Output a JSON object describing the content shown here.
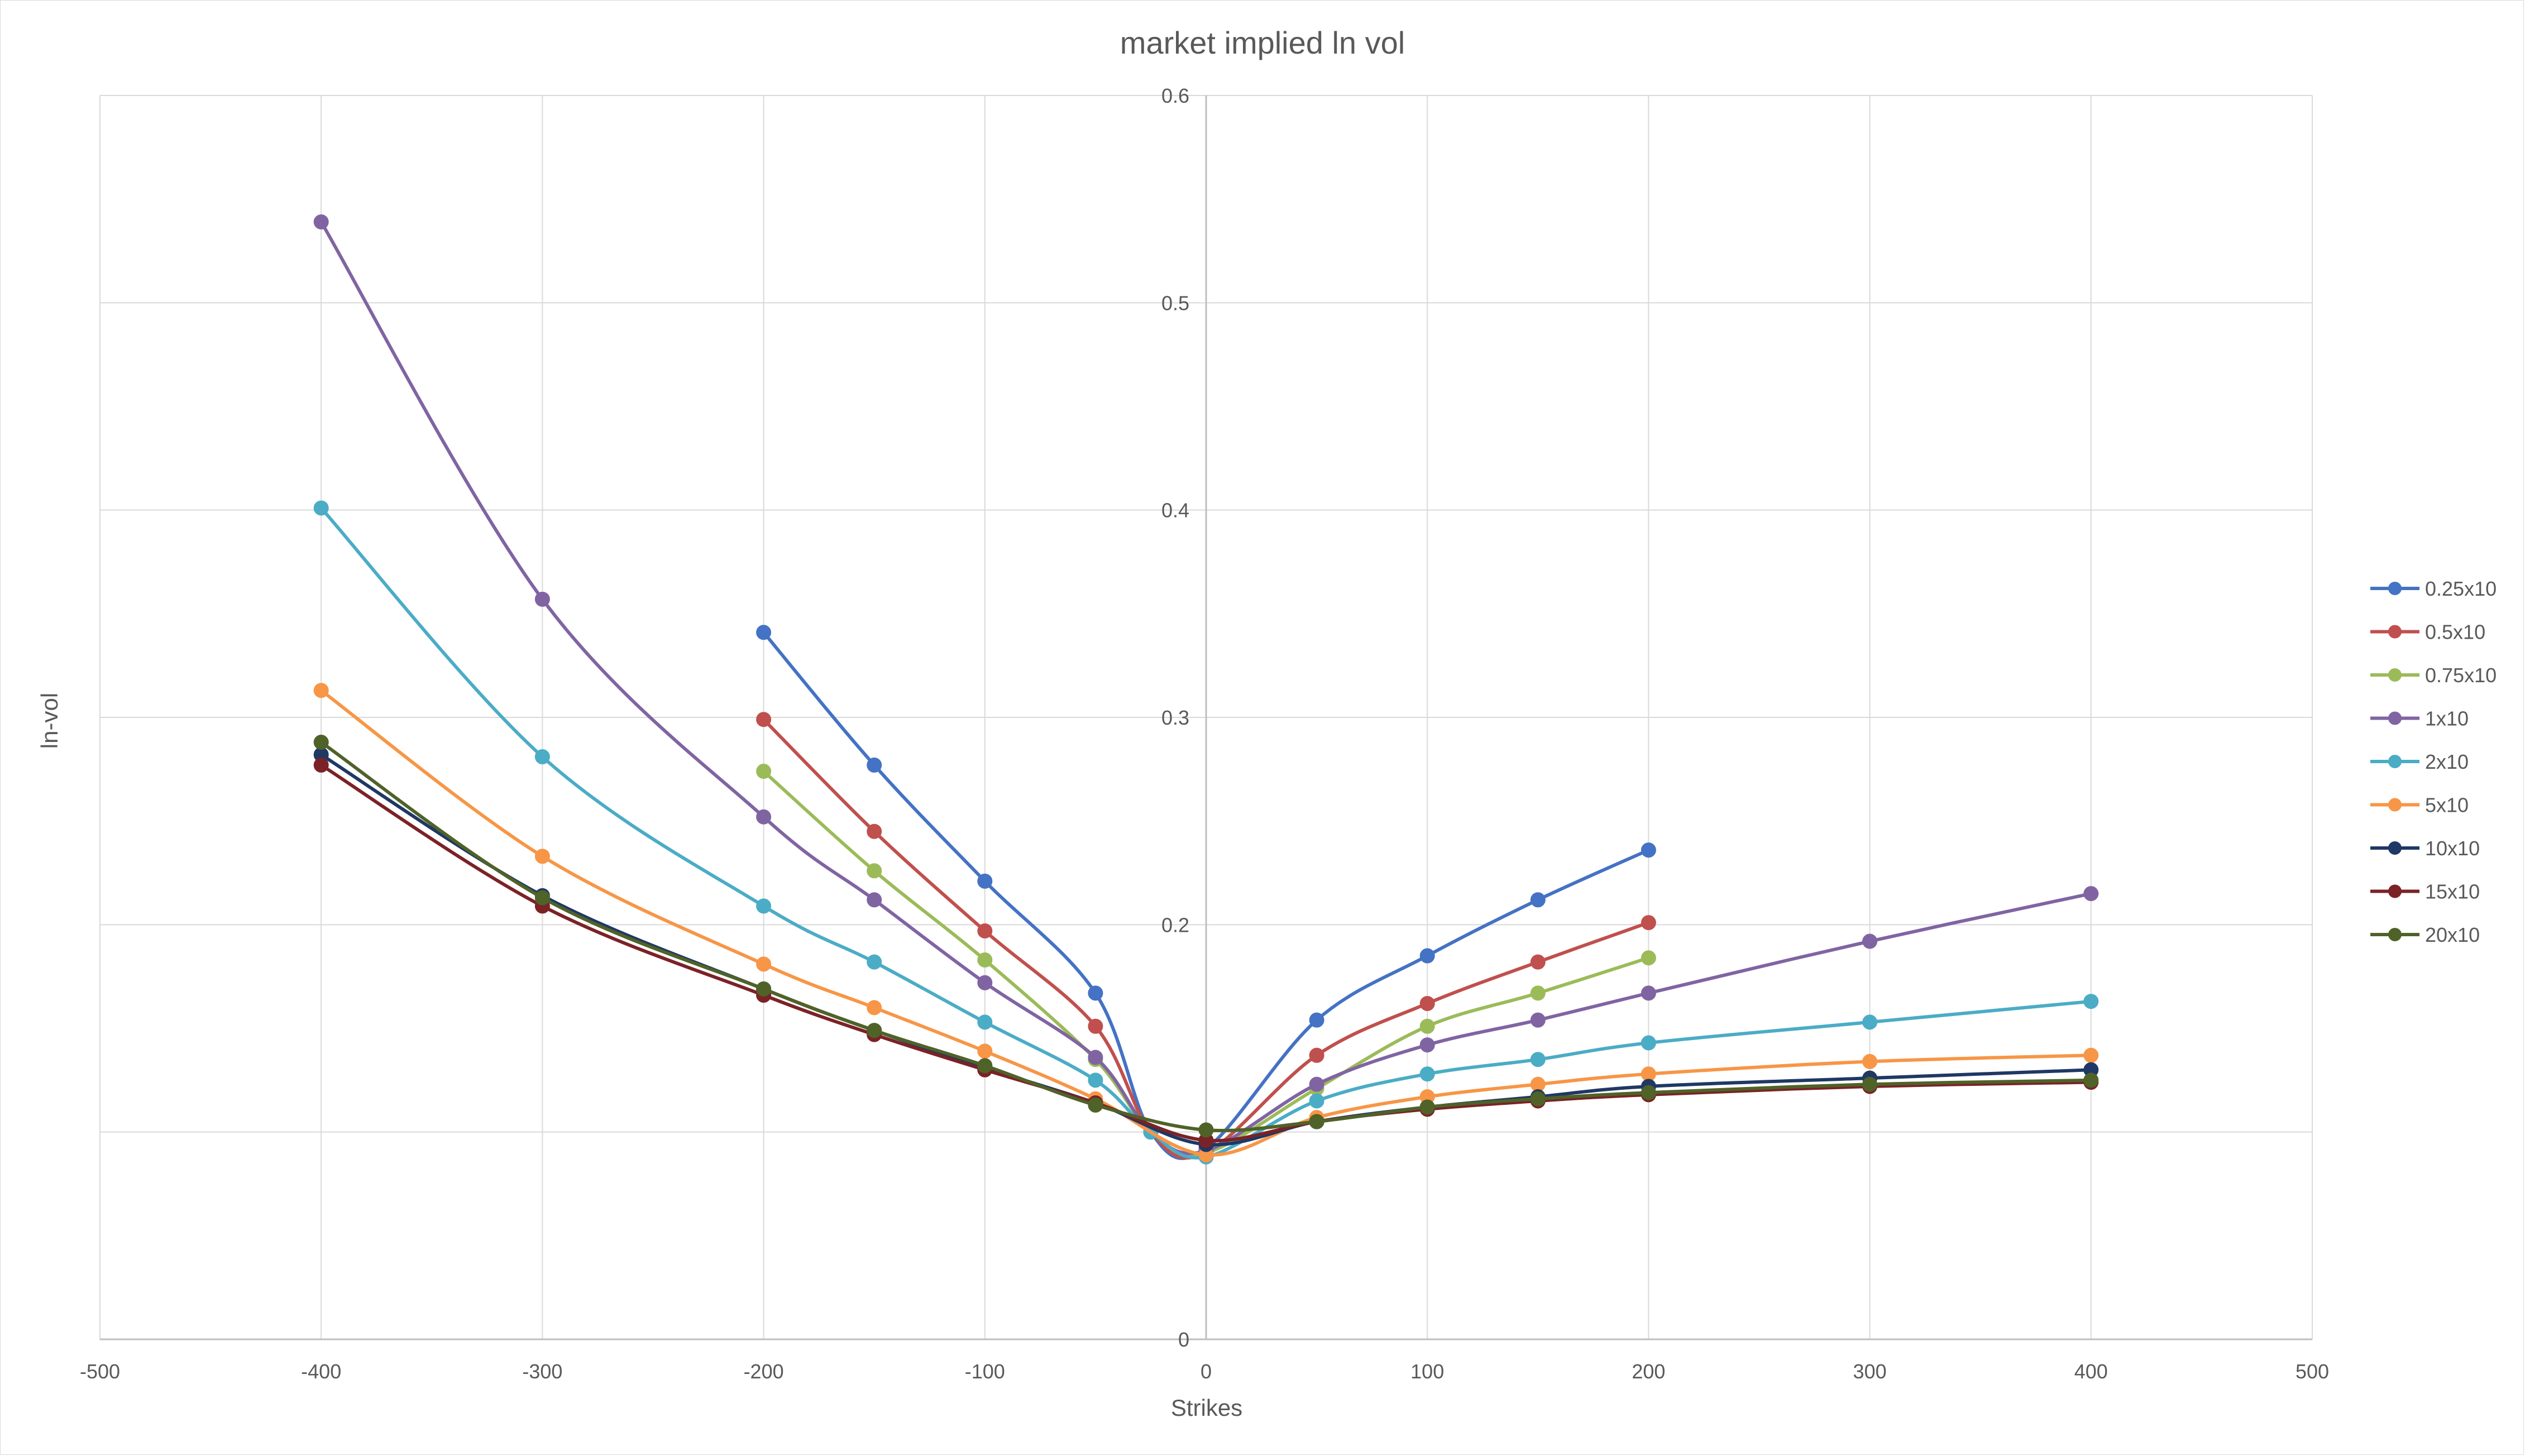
{
  "chart_data": {
    "type": "scatter",
    "smooth": true,
    "markers": true,
    "title": "market implied ln vol",
    "xlabel": "Strikes",
    "ylabel": "ln-vol",
    "xlim": [
      -500,
      500
    ],
    "ylim": [
      0,
      0.6
    ],
    "xticks": [
      -500,
      -400,
      -300,
      -200,
      -100,
      0,
      100,
      200,
      300,
      400,
      500
    ],
    "yticks": [
      0,
      0.1,
      0.2,
      0.3,
      0.4,
      0.5,
      0.6
    ],
    "xtick_labels": [
      "-500",
      "-400",
      "-300",
      "-200",
      "-100",
      "0",
      "100",
      "200",
      "300",
      "400",
      "500"
    ],
    "ytick_labels": [
      "0",
      "",
      "0.2",
      "0.3",
      "0.4",
      "0.5",
      "0.6"
    ],
    "grid": true,
    "y_axis_at": 0,
    "legend": "right",
    "series": [
      {
        "name": "0.25x10",
        "color": "#4472c4",
        "x": [
          -200,
          -150,
          -100,
          -50,
          -25,
          0,
          50,
          100,
          150,
          200
        ],
        "y": [
          0.341,
          0.277,
          0.221,
          0.167,
          0.1,
          0.092,
          0.154,
          0.185,
          0.212,
          0.236
        ]
      },
      {
        "name": "0.5x10",
        "color": "#c0504d",
        "x": [
          -200,
          -150,
          -100,
          -50,
          -25,
          0,
          50,
          100,
          150,
          200
        ],
        "y": [
          0.299,
          0.245,
          0.197,
          0.151,
          0.1,
          0.09,
          0.137,
          0.162,
          0.182,
          0.201
        ]
      },
      {
        "name": "0.75x10",
        "color": "#9bbb59",
        "x": [
          -200,
          -150,
          -100,
          -50,
          -25,
          0,
          50,
          100,
          150,
          200
        ],
        "y": [
          0.274,
          0.226,
          0.183,
          0.135,
          0.1,
          0.09,
          0.121,
          0.151,
          0.167,
          0.184
        ]
      },
      {
        "name": "1x10",
        "color": "#8064a2",
        "x": [
          -400,
          -300,
          -200,
          -150,
          -100,
          -50,
          -25,
          0,
          50,
          100,
          150,
          200,
          300,
          400
        ],
        "y": [
          0.539,
          0.357,
          0.252,
          0.212,
          0.172,
          0.136,
          0.1,
          0.091,
          0.123,
          0.142,
          0.154,
          0.167,
          0.192,
          0.215
        ]
      },
      {
        "name": "2x10",
        "color": "#4bacc6",
        "x": [
          -400,
          -300,
          -200,
          -150,
          -100,
          -50,
          -25,
          0,
          50,
          100,
          150,
          200,
          300,
          400
        ],
        "y": [
          0.401,
          0.281,
          0.209,
          0.182,
          0.153,
          0.125,
          0.1,
          0.088,
          0.115,
          0.128,
          0.135,
          0.143,
          0.153,
          0.163
        ]
      },
      {
        "name": "5x10",
        "color": "#f79646",
        "x": [
          -400,
          -300,
          -200,
          -150,
          -100,
          -50,
          0,
          50,
          100,
          150,
          200,
          300,
          400
        ],
        "y": [
          0.313,
          0.233,
          0.181,
          0.16,
          0.139,
          0.116,
          0.089,
          0.107,
          0.117,
          0.123,
          0.128,
          0.134,
          0.137
        ]
      },
      {
        "name": "10x10",
        "color": "#1f3864",
        "x": [
          -400,
          -300,
          -200,
          -150,
          -100,
          -50,
          0,
          50,
          100,
          150,
          200,
          300,
          400
        ],
        "y": [
          0.282,
          0.214,
          0.169,
          0.149,
          0.131,
          0.114,
          0.094,
          0.105,
          0.112,
          0.117,
          0.122,
          0.126,
          0.13
        ]
      },
      {
        "name": "15x10",
        "color": "#7b2226",
        "x": [
          -400,
          -300,
          -200,
          -150,
          -100,
          -50,
          0,
          50,
          100,
          150,
          200,
          300,
          400
        ],
        "y": [
          0.277,
          0.209,
          0.166,
          0.147,
          0.13,
          0.114,
          0.096,
          0.105,
          0.111,
          0.115,
          0.118,
          0.122,
          0.124
        ]
      },
      {
        "name": "20x10",
        "color": "#4f6228",
        "x": [
          -400,
          -300,
          -200,
          -150,
          -100,
          -50,
          0,
          50,
          100,
          150,
          200,
          300,
          400
        ],
        "y": [
          0.288,
          0.213,
          0.169,
          0.149,
          0.132,
          0.113,
          0.101,
          0.105,
          0.112,
          0.116,
          0.119,
          0.123,
          0.125
        ]
      }
    ]
  }
}
